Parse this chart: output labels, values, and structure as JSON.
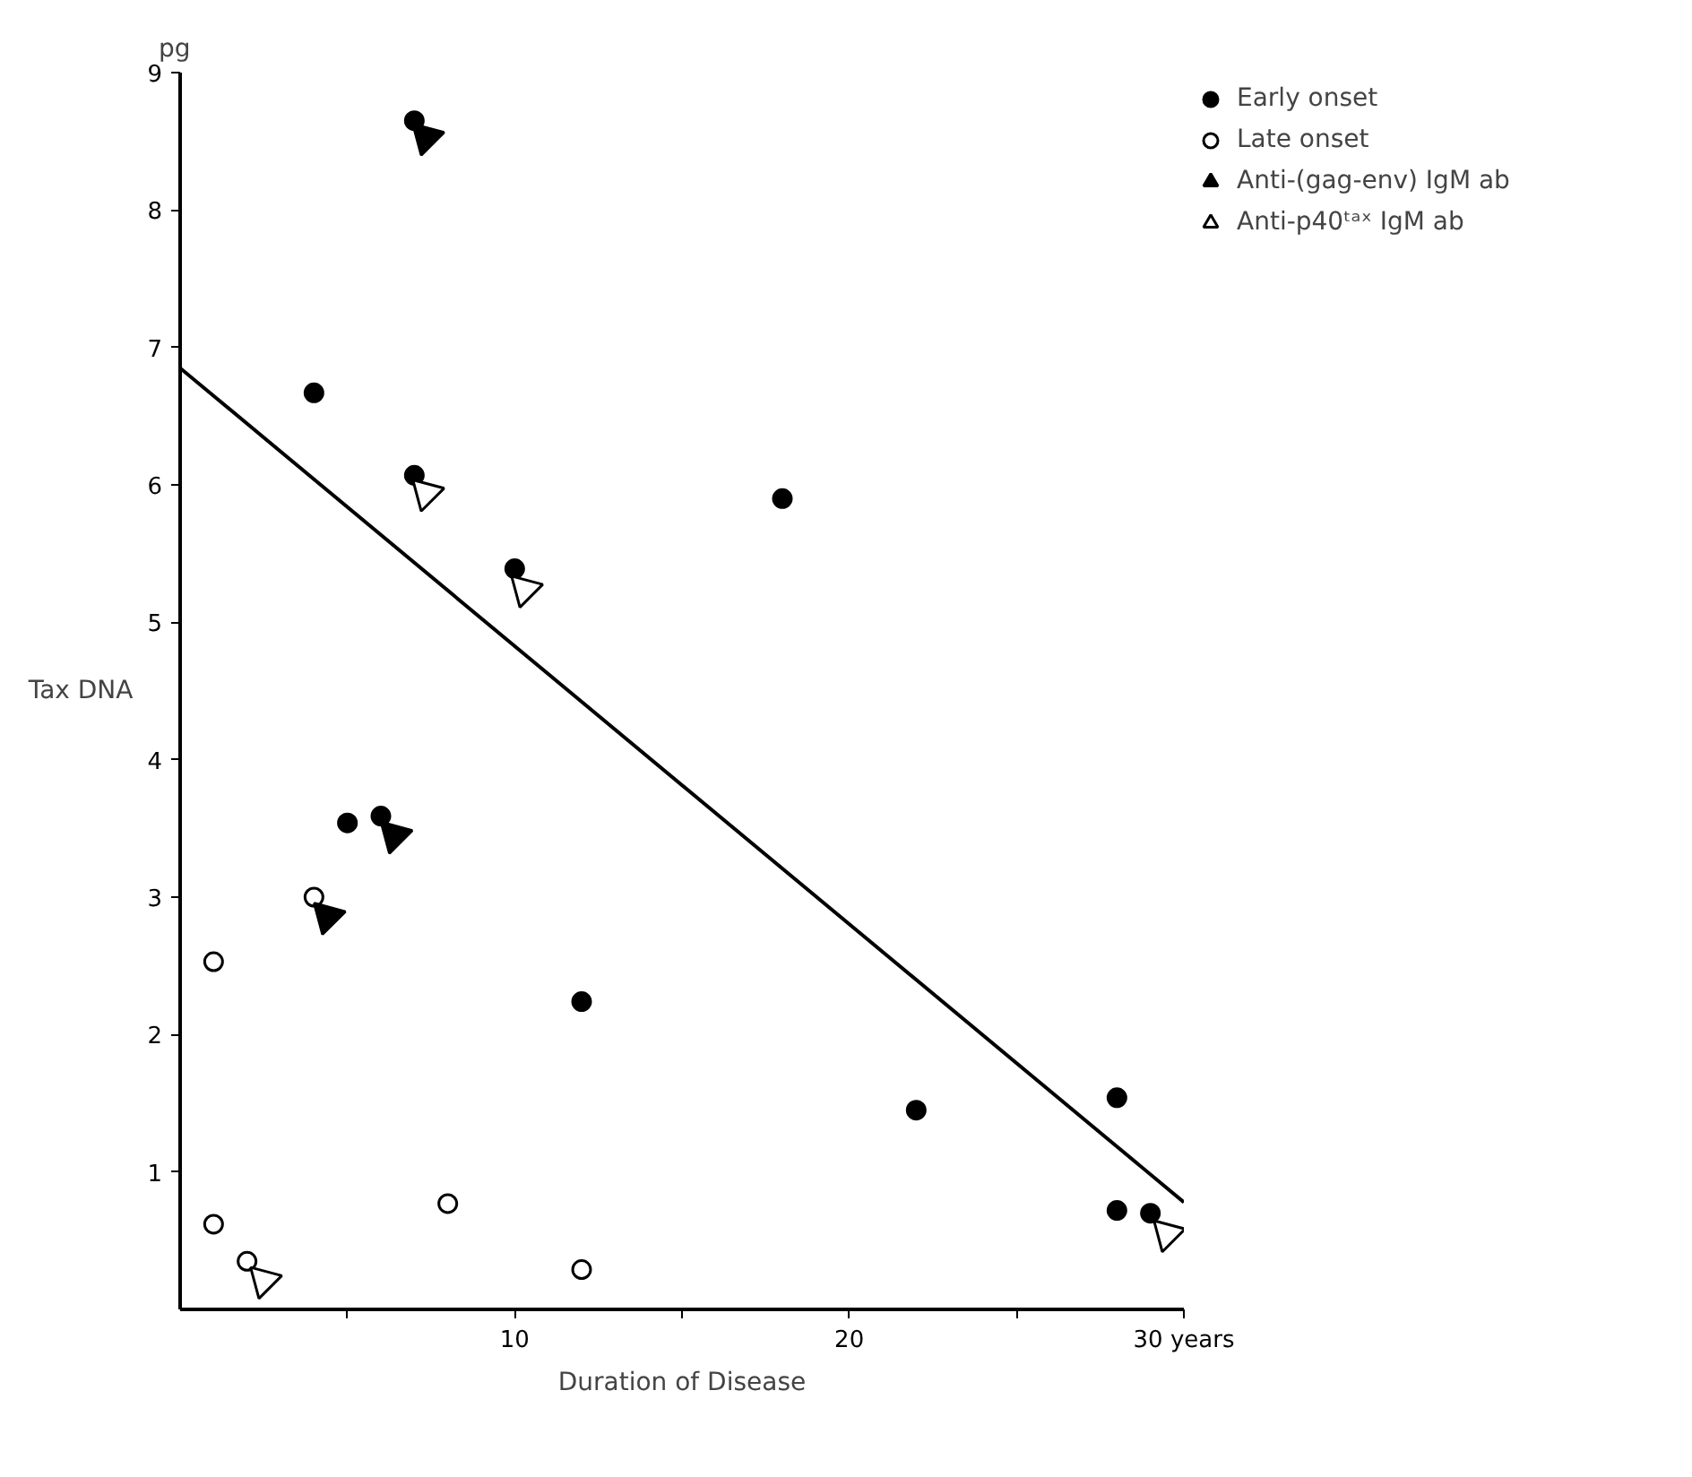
{
  "chart_data": {
    "type": "scatter",
    "xlabel": "Duration of Disease",
    "ylabel": "Tax DNA",
    "annotations": [
      "pg"
    ],
    "xlim": [
      0,
      30
    ],
    "ylim": [
      0,
      9
    ],
    "xticks": [
      {
        "value": 5,
        "label": null
      },
      10,
      {
        "value": 15,
        "label": null
      },
      20,
      {
        "value": 25,
        "label": null
      },
      {
        "value": 30,
        "label": "30 years"
      }
    ],
    "yticks": [
      1,
      2,
      3,
      4,
      5,
      6,
      7,
      8,
      9
    ],
    "grid": false,
    "legend": "top right",
    "series": [
      {
        "name": "Early onset",
        "marker": "circle",
        "color": "#000000",
        "x": [
          7,
          4,
          7,
          10,
          18,
          5,
          6,
          12,
          22,
          28,
          28,
          29
        ],
        "values": [
          8.65,
          6.67,
          6.07,
          5.39,
          5.9,
          3.54,
          3.59,
          2.24,
          1.45,
          1.54,
          0.72,
          0.7
        ]
      },
      {
        "name": "Late onset",
        "marker": "circle",
        "color": "#ffffff",
        "x": [
          1,
          1,
          2,
          4,
          8,
          12
        ],
        "values": [
          2.53,
          0.62,
          0.35,
          3.0,
          0.77,
          0.29
        ]
      },
      {
        "name": "Anti-(gag-env) IgM ab",
        "marker": "triangle",
        "color": "#000000",
        "x": [
          7.35,
          6.4,
          4.4
        ],
        "values": [
          8.53,
          3.45,
          2.86
        ]
      },
      {
        "name": "Anti-p40ᵗᵃˣ IgM ab",
        "marker": "triangle",
        "color": "#ffffff",
        "x": [
          7.35,
          10.3,
          2.5,
          29.5
        ],
        "values": [
          5.94,
          5.24,
          0.21,
          0.55
        ]
      },
      {
        "type": "line",
        "color": "#000000",
        "x": [
          0,
          30
        ],
        "values": [
          6.85,
          0.78
        ]
      }
    ]
  }
}
